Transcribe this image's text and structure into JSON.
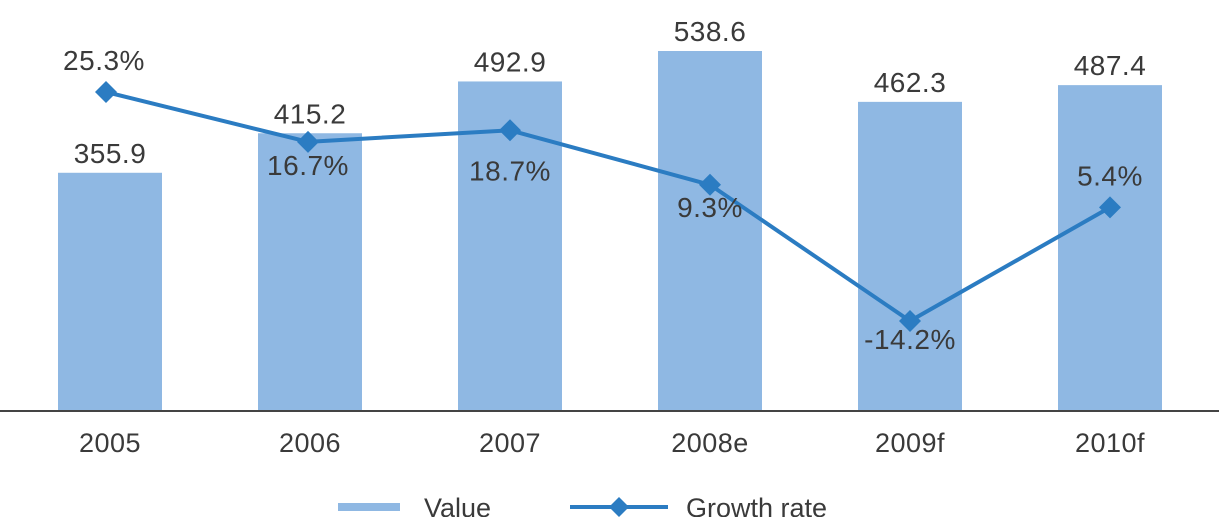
{
  "chart_data": {
    "type": "bar",
    "categories": [
      "2005",
      "2006",
      "2007",
      "2008e",
      "2009f",
      "2010f"
    ],
    "series": [
      {
        "name": "Value",
        "type": "bar",
        "values": [
          355.9,
          415.2,
          492.9,
          538.6,
          462.3,
          487.4
        ],
        "labels": [
          "355.9",
          "415.2",
          "492.9",
          "538.6",
          "462.3",
          "487.4"
        ],
        "color": "#8fb8e3"
      },
      {
        "name": "Growth rate",
        "type": "line",
        "values": [
          25.3,
          16.7,
          18.7,
          9.3,
          -14.2,
          5.4
        ],
        "labels": [
          "25.3%",
          "16.7%",
          "18.7%",
          "9.3%",
          "-14.2%",
          "5.4%"
        ],
        "color": "#2b7cc2"
      }
    ],
    "legend": {
      "position": "bottom",
      "entries": [
        "Value",
        "Growth rate"
      ]
    },
    "axis_color": "#444444",
    "grid": false
  }
}
